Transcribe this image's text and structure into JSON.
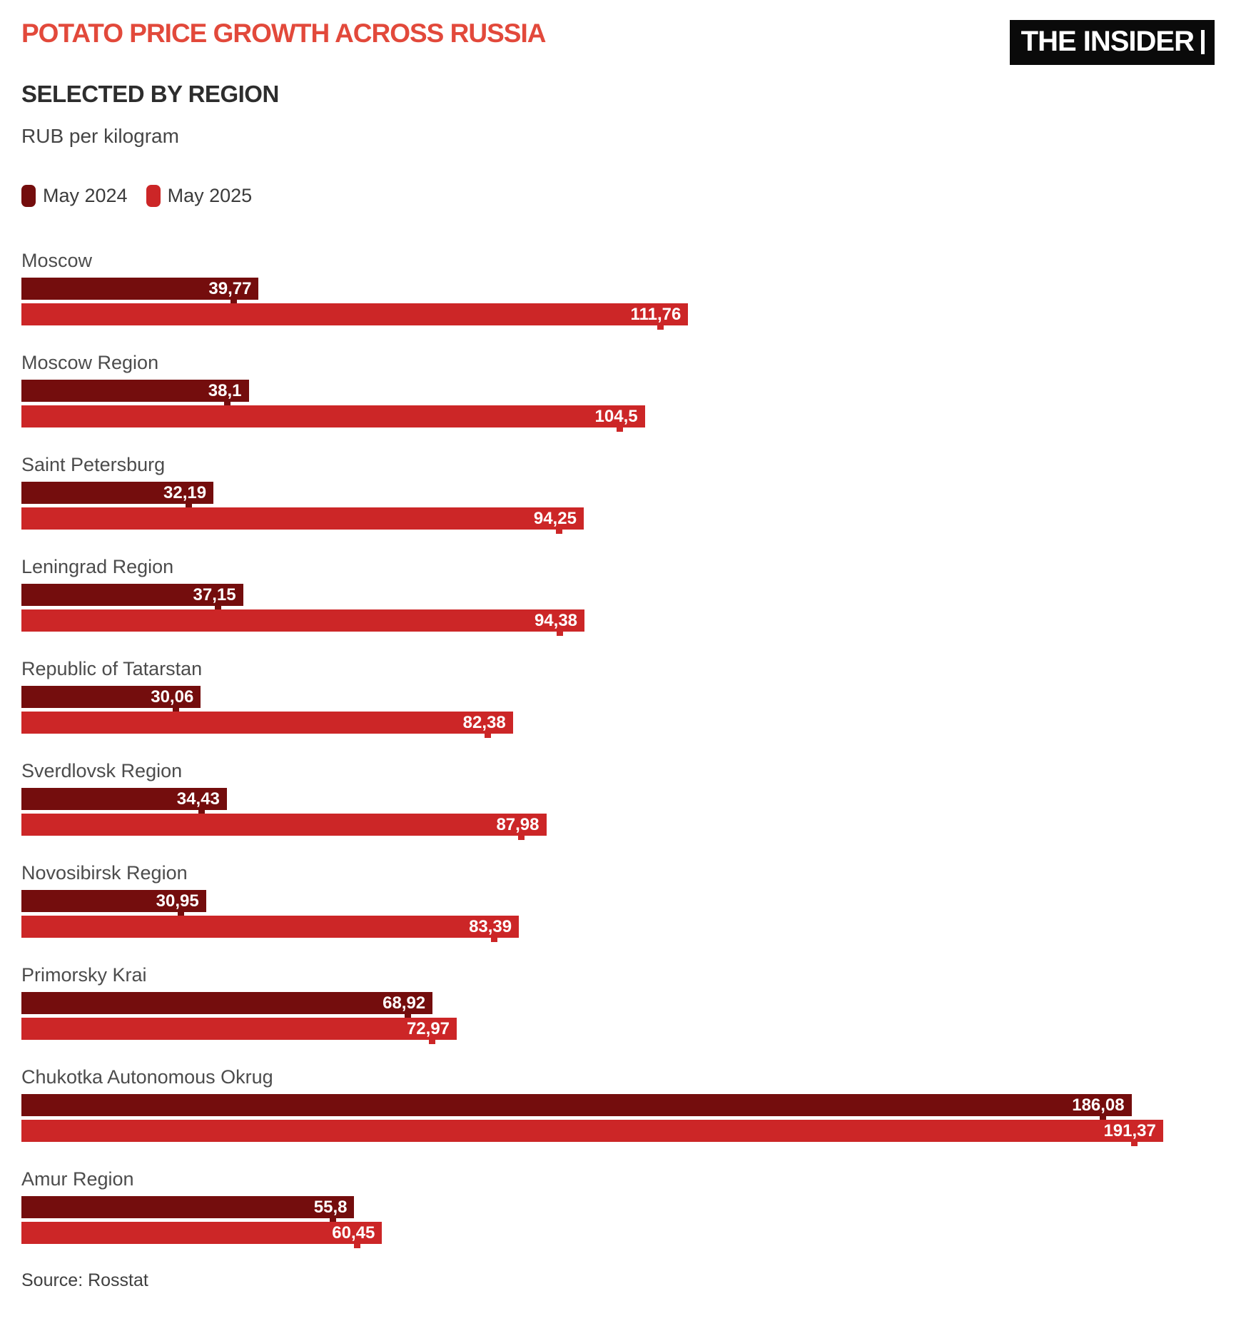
{
  "header": {
    "title": "POTATO PRICE GROWTH ACROSS RUSSIA",
    "subtitle": "SELECTED BY REGION",
    "units": "RUB per kilogram",
    "logo_text": "THE INSIDER"
  },
  "legend": {
    "items": [
      {
        "label": "May 2024",
        "color": "#740d0d"
      },
      {
        "label": "May 2025",
        "color": "#cc2627"
      }
    ]
  },
  "colors": {
    "title_accent": "#e2493b",
    "subtitle_text": "#2d2d2d",
    "may_2024_bar": "#740d0d",
    "may_2025_bar": "#cc2627",
    "logo_background": "#0a0a0a",
    "logo_text": "#ffffff",
    "value_label_text": "#ffffff"
  },
  "chart_data": {
    "type": "bar",
    "orientation": "horizontal",
    "title": "POTATO PRICE GROWTH ACROSS RUSSIA",
    "subtitle": "SELECTED BY REGION",
    "ylabel": "RUB per kilogram",
    "xlim": [
      0,
      200
    ],
    "grid": false,
    "legend_position": "top-left",
    "value_label_format": "decimal-comma",
    "categories": [
      "Moscow",
      "Moscow Region",
      "Saint Petersburg",
      "Leningrad Region",
      "Republic of Tatarstan",
      "Sverdlovsk Region",
      "Novosibirsk Region",
      "Primorsky Krai",
      "Chukotka Autonomous Okrug",
      "Amur Region"
    ],
    "series": [
      {
        "name": "May 2024",
        "color": "#740d0d",
        "values": [
          39.77,
          38.1,
          32.19,
          37.15,
          30.06,
          34.43,
          30.95,
          68.92,
          186.08,
          55.8
        ],
        "labels": [
          "39,77",
          "38,1",
          "32,19",
          "37,15",
          "30,06",
          "34,43",
          "30,95",
          "68,92",
          "186,08",
          "55,8"
        ]
      },
      {
        "name": "May 2025",
        "color": "#cc2627",
        "values": [
          111.76,
          104.5,
          94.25,
          94.38,
          82.38,
          87.98,
          83.39,
          72.97,
          191.37,
          60.45
        ],
        "labels": [
          "111,76",
          "104,5",
          "94,25",
          "94,38",
          "82,38",
          "87,98",
          "83,39",
          "72,97",
          "191,37",
          "60,45"
        ]
      }
    ]
  },
  "footer": {
    "source": "Source: Rosstat"
  }
}
